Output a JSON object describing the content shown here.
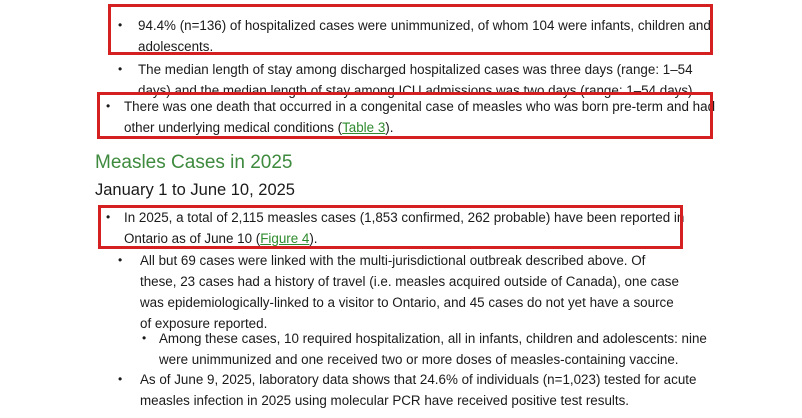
{
  "highlight_color": "#d42020",
  "link_color": "#2e8b2e",
  "heading_color": "#3e8a3e",
  "bullet_glyph": "•",
  "items": {
    "unimmunized": {
      "line1": "94.4% (n=136) of hospitalized cases were unimmunized, of whom 104 were infants, children and",
      "line2": "adolescents."
    },
    "length_of_stay": {
      "line1": "The median length of stay among discharged hospitalized cases was three days (range: 1–54",
      "line2": "days) and the median length of stay among ICU admissions was two days (range: 1–54 days)."
    },
    "death": {
      "line1": "There was one death that occurred in a congenital case of measles who was born pre-term and had",
      "line2_before": "other underlying medical conditions (",
      "line2_link": "Table 3",
      "line2_after": ")."
    },
    "total_2025": {
      "line1": "In 2025, a total of 2,115 measles cases (1,853 confirmed, 262 probable) have been reported in",
      "line2_before": "Ontario as of June 10 (",
      "line2_link": "Figure 4",
      "line2_after": ")."
    },
    "outbreak_linked": {
      "line1": "All but 69 cases were linked with the multi-jurisdictional outbreak described above. Of",
      "line2": "these, 23 cases had a history of travel (i.e. measles acquired outside of Canada), one case",
      "line3": "was epidemiologically-linked to a visitor to Ontario, and 45 cases do not yet have a source",
      "line4": "of exposure reported."
    },
    "hospitalization_sub": {
      "line1": "Among these cases, 10 required hospitalization, all in infants, children and adolescents: nine",
      "line2": "were unimmunized and one received two or more doses of measles-containing vaccine."
    },
    "lab_data": {
      "line1": "As of June 9, 2025, laboratory data shows that 24.6% of individuals (n=1,023) tested for acute",
      "line2": "measles infection in 2025 using molecular PCR have received positive test results."
    }
  },
  "section": {
    "heading": "Measles Cases in 2025",
    "subheading": "January 1 to June 10, 2025"
  }
}
